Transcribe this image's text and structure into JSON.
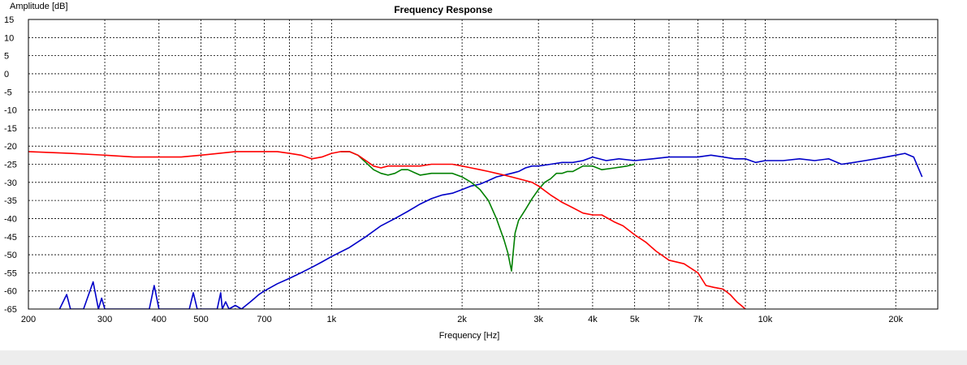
{
  "chart_data": {
    "type": "line",
    "title": "Frequency Response",
    "xlabel": "Frequency [Hz]",
    "ylabel": "Amplitude [dB]",
    "x_scale": "log",
    "xlim": [
      200,
      25000
    ],
    "ylim": [
      -65,
      15
    ],
    "grid": true,
    "x_ticks": [
      {
        "value": 200,
        "label": "200"
      },
      {
        "value": 300,
        "label": "300"
      },
      {
        "value": 400,
        "label": "400"
      },
      {
        "value": 500,
        "label": "500"
      },
      {
        "value": 700,
        "label": "700"
      },
      {
        "value": 1000,
        "label": "1k"
      },
      {
        "value": 2000,
        "label": "2k"
      },
      {
        "value": 3000,
        "label": "3k"
      },
      {
        "value": 4000,
        "label": "4k"
      },
      {
        "value": 5000,
        "label": "5k"
      },
      {
        "value": 7000,
        "label": "7k"
      },
      {
        "value": 10000,
        "label": "10k"
      },
      {
        "value": 20000,
        "label": "20k"
      }
    ],
    "x_grid_extra": [
      600,
      800,
      900,
      6000,
      8000,
      9000
    ],
    "y_ticks": [
      15,
      10,
      5,
      0,
      -5,
      -10,
      -15,
      -20,
      -25,
      -30,
      -35,
      -40,
      -45,
      -50,
      -55,
      -60,
      -65
    ],
    "series": [
      {
        "color": "#0000c8",
        "x": [
          236,
          245,
          250,
          268,
          282,
          290,
          295,
          300,
          305,
          380,
          390,
          400,
          470,
          480,
          490,
          545,
          555,
          560,
          570,
          580,
          600,
          620,
          650,
          680,
          700,
          750,
          800,
          850,
          900,
          950,
          1000,
          1100,
          1200,
          1300,
          1400,
          1500,
          1600,
          1700,
          1800,
          1900,
          2000,
          2100,
          2200,
          2300,
          2400,
          2500,
          2600,
          2700,
          2800,
          2900,
          3000,
          3200,
          3400,
          3600,
          3800,
          4000,
          4300,
          4600,
          5000,
          5500,
          6000,
          6500,
          7000,
          7500,
          8000,
          8500,
          9000,
          9500,
          10000,
          11000,
          12000,
          13000,
          14000,
          15000,
          16000,
          17000,
          18000,
          19000,
          20000,
          21000,
          22000,
          23000
        ],
        "y": [
          -65,
          -61,
          -65,
          -65,
          -57.5,
          -65,
          -62,
          -65,
          -65,
          -65,
          -58.5,
          -65,
          -65,
          -60.5,
          -65,
          -65,
          -60.5,
          -65,
          -63,
          -65,
          -64,
          -65,
          -63,
          -61,
          -60,
          -58,
          -56.5,
          -55,
          -53.5,
          -52,
          -50.5,
          -48,
          -45,
          -42,
          -40,
          -38,
          -36,
          -34.5,
          -33.5,
          -33,
          -32,
          -31,
          -30.5,
          -29.5,
          -28.5,
          -28,
          -27.5,
          -27,
          -26,
          -25.5,
          -25.5,
          -25,
          -24.5,
          -24.5,
          -24,
          -23,
          -24,
          -23.5,
          -24,
          -23.5,
          -23,
          -23,
          -23,
          -22.5,
          -23,
          -23.5,
          -23.5,
          -24.5,
          -24,
          -24,
          -23.5,
          -24,
          -23.5,
          -25,
          -24.5,
          -24,
          -23.5,
          -23,
          -22.5,
          -22,
          -23,
          -28.5
        ]
      },
      {
        "color": "#008000",
        "x": [
          1050,
          1100,
          1150,
          1200,
          1250,
          1300,
          1350,
          1400,
          1450,
          1500,
          1600,
          1700,
          1800,
          1900,
          2000,
          2100,
          2200,
          2300,
          2400,
          2500,
          2550,
          2600,
          2620,
          2650,
          2700,
          2800,
          2900,
          3000,
          3100,
          3200,
          3300,
          3400,
          3500,
          3600,
          3800,
          4000,
          4200,
          4500,
          4800,
          5000
        ],
        "y": [
          -21.5,
          -21.5,
          -22.5,
          -24.5,
          -26.5,
          -27.5,
          -28,
          -27.5,
          -26.5,
          -26.5,
          -28,
          -27.5,
          -27.5,
          -27.5,
          -28.5,
          -30,
          -32,
          -35,
          -40,
          -46,
          -49.5,
          -54.5,
          -50,
          -44,
          -40.5,
          -37.5,
          -34.5,
          -32,
          -30,
          -29,
          -27.5,
          -27.5,
          -27,
          -27,
          -25.5,
          -25.5,
          -26.5,
          -26,
          -25.5,
          -25
        ]
      },
      {
        "color": "#ff0000",
        "x": [
          200,
          250,
          300,
          350,
          400,
          450,
          500,
          550,
          600,
          650,
          700,
          750,
          800,
          850,
          900,
          950,
          1000,
          1050,
          1100,
          1150,
          1200,
          1250,
          1300,
          1350,
          1400,
          1500,
          1600,
          1700,
          1800,
          1900,
          2000,
          2100,
          2200,
          2300,
          2400,
          2500,
          2600,
          2700,
          2800,
          2900,
          3000,
          3200,
          3400,
          3600,
          3800,
          4000,
          4200,
          4500,
          4700,
          5000,
          5300,
          5600,
          6000,
          6500,
          7000,
          7300,
          7600,
          8000,
          8300,
          8600,
          8800,
          9000
        ],
        "y": [
          -21.5,
          -22,
          -22.5,
          -23,
          -23,
          -23,
          -22.5,
          -22,
          -21.5,
          -21.5,
          -21.5,
          -21.5,
          -22,
          -22.5,
          -23.5,
          -23,
          -22,
          -21.5,
          -21.5,
          -22.5,
          -24,
          -25.5,
          -26,
          -25.5,
          -25.5,
          -25.5,
          -25.5,
          -25,
          -25,
          -25,
          -25.5,
          -26,
          -26.5,
          -27,
          -27.5,
          -28,
          -28.5,
          -29,
          -29.5,
          -30,
          -31,
          -33.5,
          -35.5,
          -37,
          -38.5,
          -39,
          -39,
          -41,
          -42,
          -44.5,
          -46.5,
          -49,
          -51.5,
          -52.5,
          -55,
          -58.5,
          -59,
          -59.5,
          -61,
          -63,
          -64,
          -65
        ]
      }
    ]
  }
}
